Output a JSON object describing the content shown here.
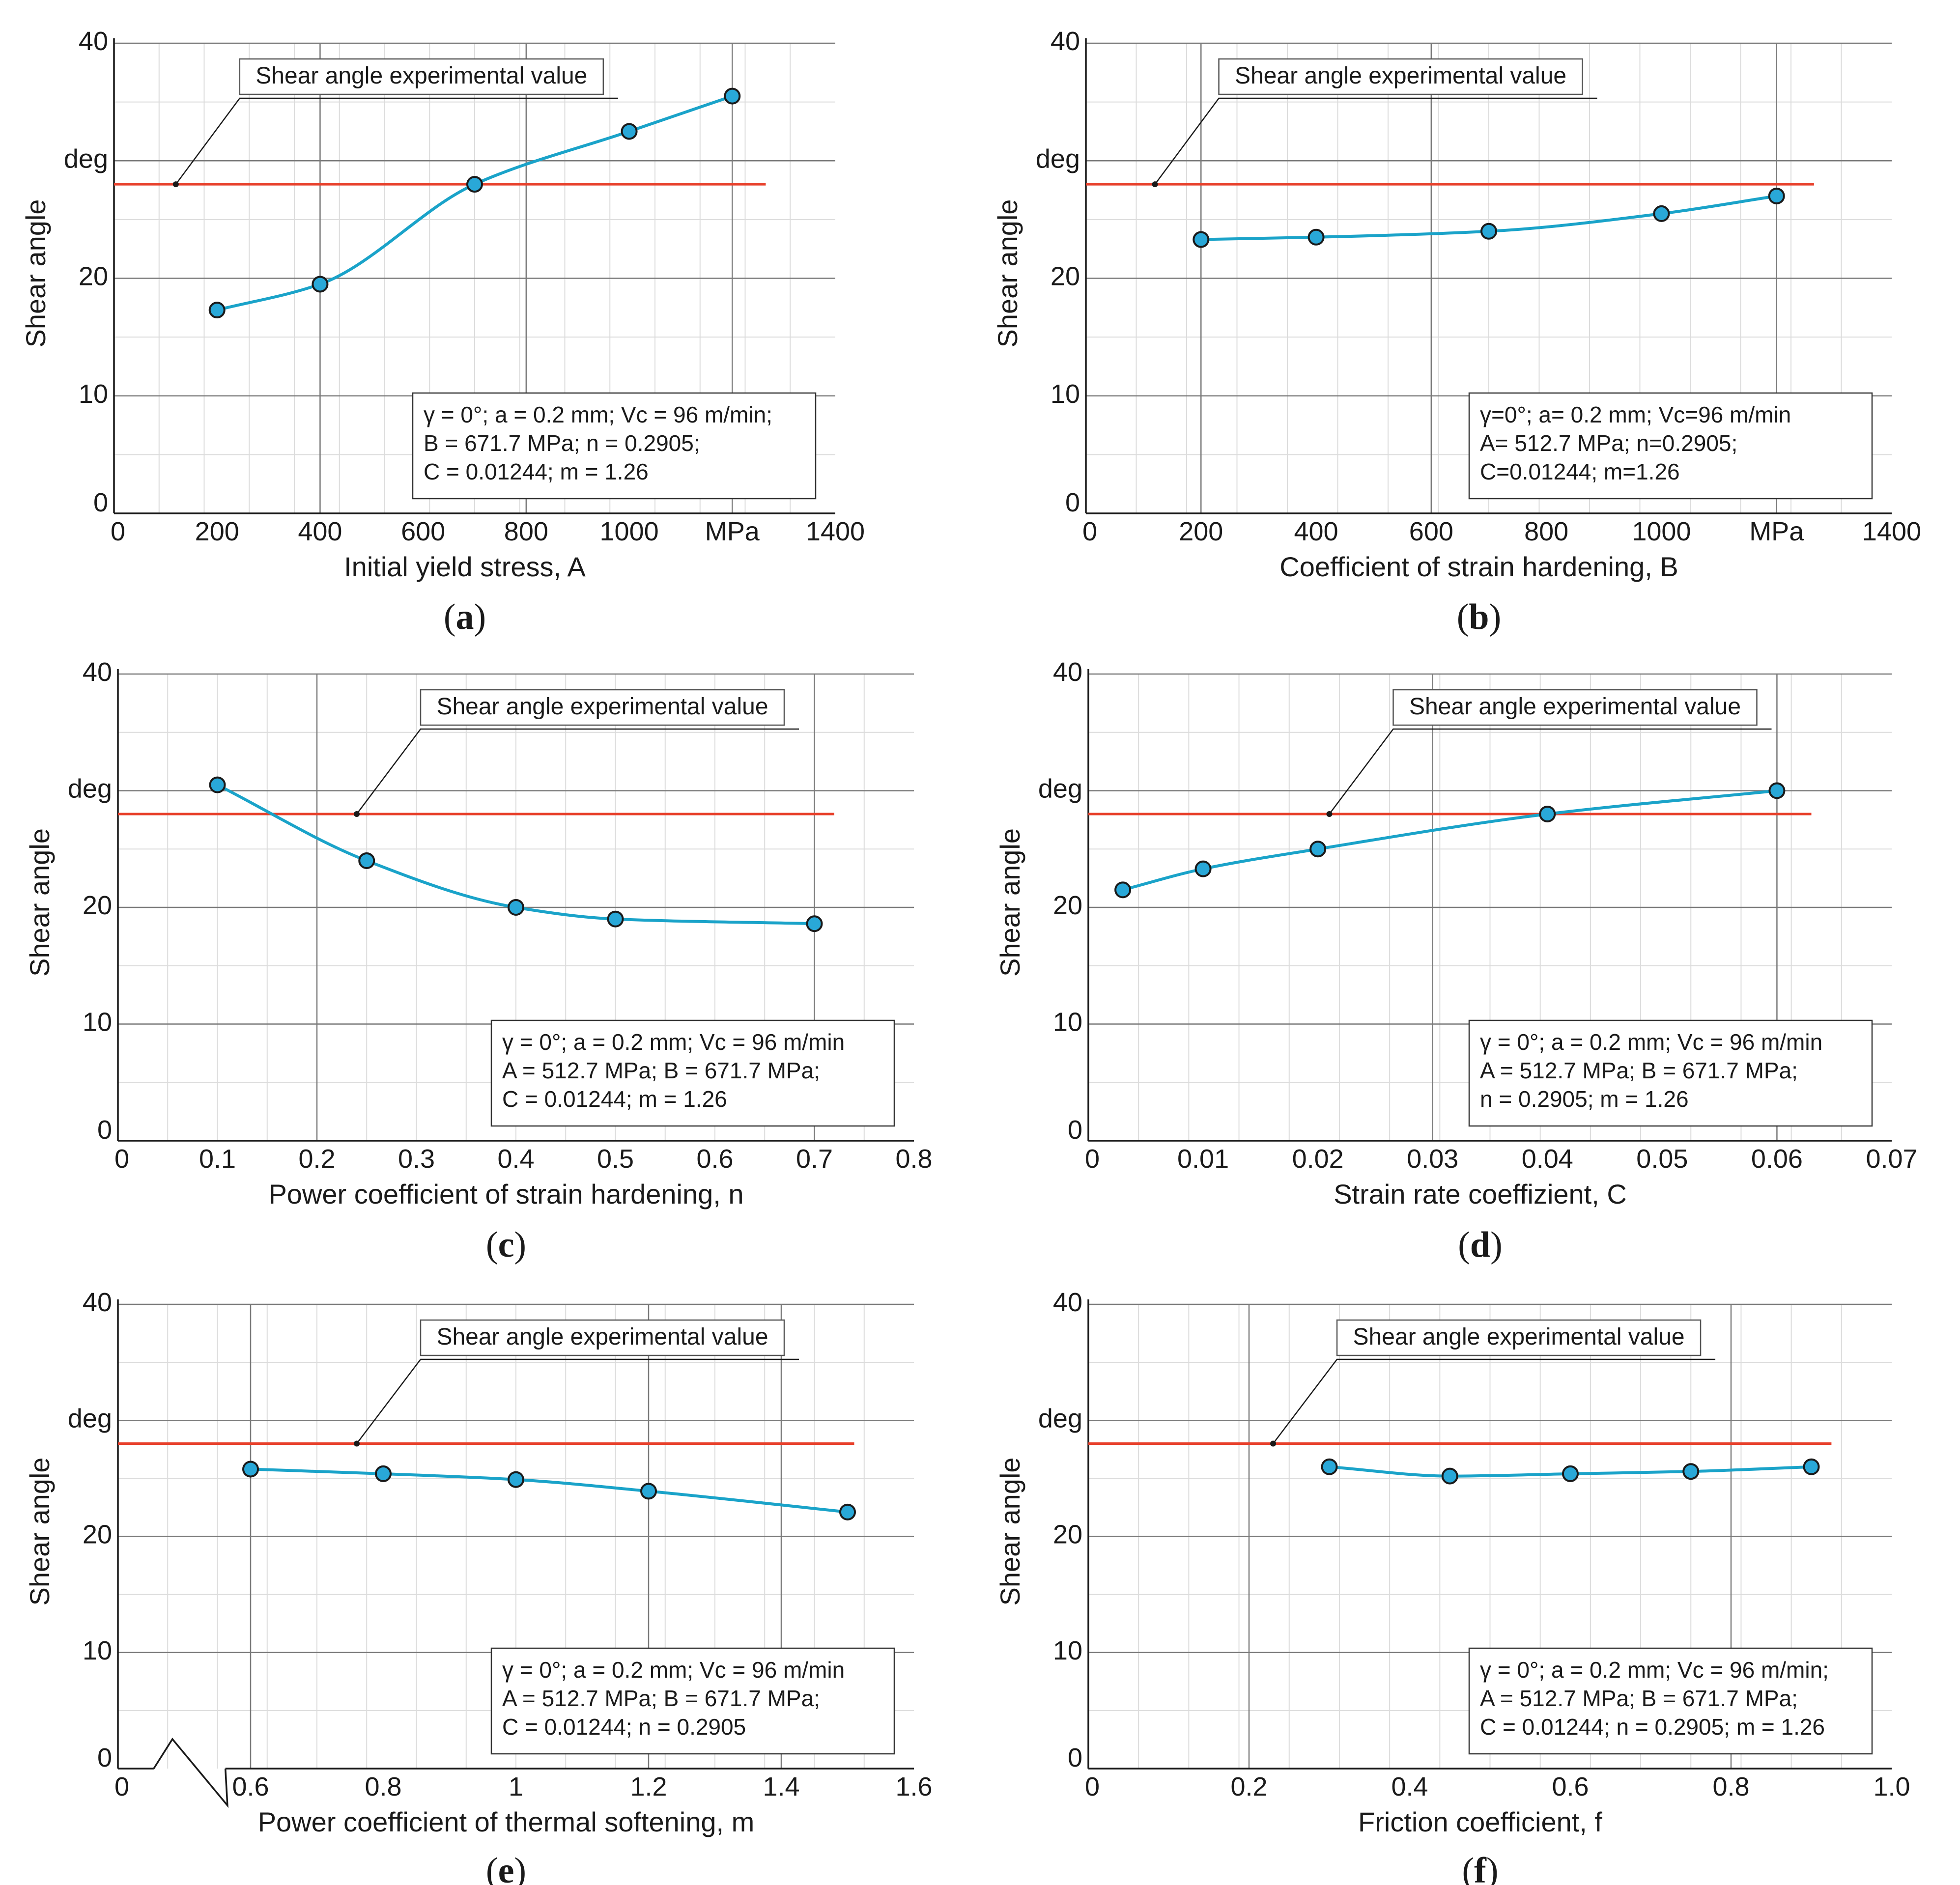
{
  "colors": {
    "reference_line": "#e8412c",
    "series_line": "#1aa3c9",
    "marker_fill": "#29a8d8",
    "marker_stroke": "#1a1a1a",
    "axis": "#1a1a1a",
    "grid_major": "#7a7a7a",
    "grid_minor": "#dcdcdc"
  },
  "chart_data": [
    {
      "type": "line",
      "caption": {
        "open": "(",
        "letter": "a",
        "close": ")"
      },
      "xlabel": "Initial yield stress, A",
      "ylabel": "Shear angle",
      "xlim": [
        0,
        1400
      ],
      "ylim": [
        0,
        40
      ],
      "x_ticks": [
        "0",
        "200",
        "400",
        "600",
        "800",
        "1000",
        "MPa",
        "1400"
      ],
      "y_ticks": [
        "0",
        "10",
        "20",
        "deg",
        "40"
      ],
      "vertical_grid_x": [
        400,
        800,
        1200
      ],
      "series": [
        {
          "x": [
            200,
            400,
            700,
            1000,
            1200
          ],
          "y": [
            17.3,
            19.5,
            28.0,
            32.5,
            35.5
          ]
        }
      ],
      "reference": {
        "label": "Shear angle experimental value",
        "y": 28.0,
        "x_start": 0,
        "x_end": 1265,
        "leader_x": 120
      },
      "conditions": [
        "γ = 0°; a = 0.2 mm; Vc = 96 m/min;",
        "B = 671.7 MPa; n = 0.2905;",
        "C = 0.01244; m = 1.26"
      ]
    },
    {
      "type": "line",
      "caption": {
        "open": "(",
        "letter": "b",
        "close": ")"
      },
      "xlabel": "Coefficient of strain hardening, B",
      "ylabel": "Shear angle",
      "xlim": [
        0,
        1400
      ],
      "ylim": [
        0,
        40
      ],
      "x_ticks": [
        "0",
        "200",
        "400",
        "600",
        "800",
        "1000",
        "MPa",
        "1400"
      ],
      "y_ticks": [
        "0",
        "10",
        "20",
        "deg",
        "40"
      ],
      "vertical_grid_x": [
        200,
        600,
        1200
      ],
      "series": [
        {
          "x": [
            200,
            400,
            700,
            1000,
            1200
          ],
          "y": [
            23.3,
            23.5,
            24.0,
            25.5,
            27.0
          ]
        }
      ],
      "reference": {
        "label": "Shear angle experimental value",
        "y": 28.0,
        "x_start": 0,
        "x_end": 1265,
        "leader_x": 120
      },
      "conditions": [
        "γ=0°; a= 0.2 mm; Vc=96 m/min",
        "A= 512.7 MPa; n=0.2905;",
        "C=0.01244; m=1.26"
      ]
    },
    {
      "type": "line",
      "caption": {
        "open": "(",
        "letter": "c",
        "close": ")"
      },
      "xlabel": "Power coefficient of strain hardening, n",
      "ylabel": "Shear angle",
      "xlim": [
        0,
        0.8
      ],
      "ylim": [
        0,
        40
      ],
      "x_ticks": [
        "0",
        "0.1",
        "0.2",
        "0.3",
        "0.4",
        "0.5",
        "0.6",
        "0.7",
        "0.8"
      ],
      "y_ticks": [
        "0",
        "10",
        "20",
        "deg",
        "40"
      ],
      "vertical_grid_x": [
        0.2,
        0.7
      ],
      "series": [
        {
          "x": [
            0.1,
            0.25,
            0.4,
            0.5,
            0.7
          ],
          "y": [
            30.5,
            24.0,
            20.0,
            19.0,
            18.6
          ]
        }
      ],
      "reference": {
        "label": "Shear angle experimental value",
        "y": 28.0,
        "x_start": 0,
        "x_end": 0.72,
        "leader_x": 0.24
      },
      "conditions": [
        "γ = 0°; a = 0.2 mm; Vc = 96 m/min",
        "A = 512.7 MPa; B = 671.7 MPa;",
        "C = 0.01244; m = 1.26"
      ]
    },
    {
      "type": "line",
      "caption": {
        "open": "(",
        "letter": "d",
        "close": ")"
      },
      "xlabel": "Strain rate coeffizient, C",
      "ylabel": "Shear angle",
      "xlim": [
        0,
        0.07
      ],
      "ylim": [
        0,
        40
      ],
      "x_ticks": [
        "0",
        "0.01",
        "0.02",
        "0.03",
        "0.04",
        "0.05",
        "0.06",
        "0.07"
      ],
      "y_ticks": [
        "0",
        "10",
        "20",
        "deg",
        "40"
      ],
      "vertical_grid_x": [
        0.03,
        0.06
      ],
      "series": [
        {
          "x": [
            0.003,
            0.01,
            0.02,
            0.04,
            0.06
          ],
          "y": [
            21.5,
            23.3,
            25.0,
            28.0,
            30.0
          ]
        }
      ],
      "reference": {
        "label": "Shear angle experimental value",
        "y": 28.0,
        "x_start": 0,
        "x_end": 0.063,
        "leader_x": 0.021
      },
      "conditions": [
        "γ = 0°; a = 0.2 mm; Vc = 96 m/min",
        "A = 512.7 MPa; B = 671.7 MPa;",
        "n = 0.2905; m = 1.26"
      ]
    },
    {
      "type": "line",
      "caption": {
        "open": "(",
        "letter": "e",
        "close": ")"
      },
      "xlabel": "Power coefficient of thermal softening, m",
      "ylabel": "Shear angle",
      "xlim": [
        0.4,
        1.6
      ],
      "ylim": [
        0,
        40
      ],
      "x_ticks": [
        "0",
        "0.6",
        "0.8",
        "1",
        "1.2",
        "1.4",
        "1.6"
      ],
      "y_ticks": [
        "0",
        "10",
        "20",
        "deg",
        "40"
      ],
      "axis_break": true,
      "vertical_grid_x": [
        0.6,
        1.2,
        1.4
      ],
      "series": [
        {
          "x": [
            0.6,
            0.8,
            1.0,
            1.2,
            1.5
          ],
          "y": [
            25.8,
            25.4,
            24.9,
            23.9,
            22.1
          ]
        }
      ],
      "reference": {
        "label": "Shear angle experimental value",
        "y": 28.0,
        "x_start": 0.4,
        "x_end": 1.51,
        "leader_x": 0.76
      },
      "conditions": [
        "γ = 0°; a = 0.2 mm; Vc = 96 m/min",
        "A = 512.7 MPa; B = 671.7 MPa;",
        "C = 0.01244; n = 0.2905"
      ]
    },
    {
      "type": "line",
      "caption": {
        "open": "(",
        "letter": "f",
        "close": ")"
      },
      "xlabel": "Friction coefficient, f",
      "ylabel": "Shear angle",
      "xlim": [
        0,
        1.0
      ],
      "ylim": [
        0,
        40
      ],
      "x_ticks": [
        "0",
        "0.2",
        "0.4",
        "0.6",
        "0.8",
        "1.0"
      ],
      "y_ticks": [
        "0",
        "10",
        "20",
        "deg",
        "40"
      ],
      "vertical_grid_x": [
        0.2,
        0.8
      ],
      "series": [
        {
          "x": [
            0.3,
            0.45,
            0.6,
            0.75,
            0.9
          ],
          "y": [
            26.0,
            25.2,
            25.4,
            25.6,
            26.0
          ]
        }
      ],
      "reference": {
        "label": "Shear angle experimental value",
        "y": 28.0,
        "x_start": 0,
        "x_end": 0.925,
        "leader_x": 0.23
      },
      "conditions": [
        "γ = 0°; a = 0.2 mm; Vc = 96 m/min;",
        "A = 512.7 MPa; B = 671.7 MPa;",
        "C = 0.01244; n = 0.2905; m = 1.26"
      ]
    }
  ]
}
